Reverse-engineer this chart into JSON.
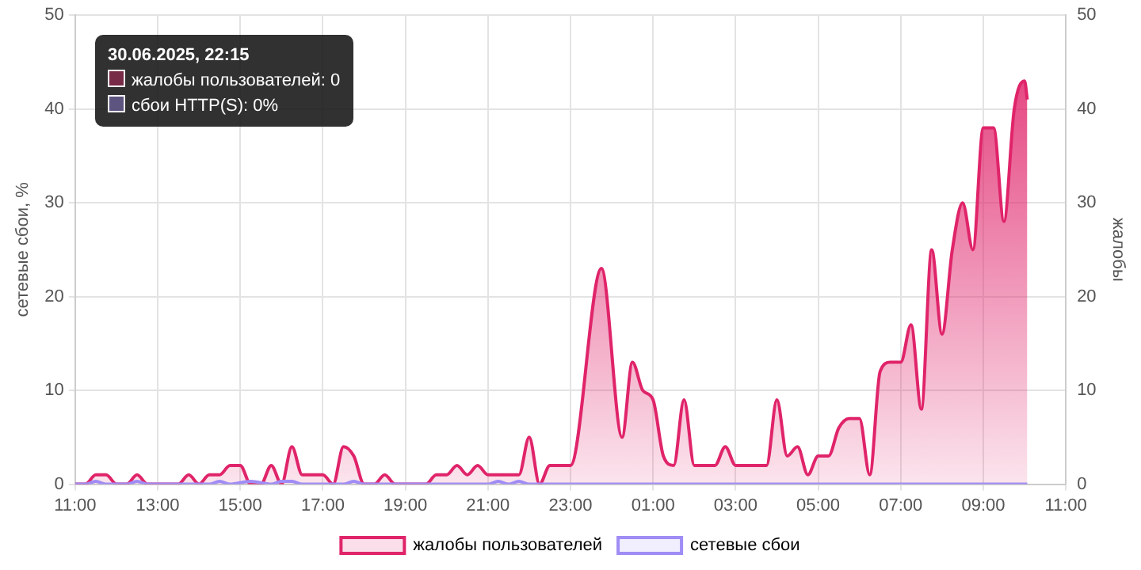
{
  "chart_data": {
    "type": "area",
    "ylabel": "сетевые сбои, %",
    "y2label": "жалобы",
    "xlim": [
      "2025-06-30T11:00",
      "2025-07-01T11:00"
    ],
    "xticks": [
      {
        "value": "2025-06-30T11:00",
        "label": "11:00"
      },
      {
        "value": "2025-06-30T13:00",
        "label": "13:00"
      },
      {
        "value": "2025-06-30T15:00",
        "label": "15:00"
      },
      {
        "value": "2025-06-30T17:00",
        "label": "17:00"
      },
      {
        "value": "2025-06-30T19:00",
        "label": "19:00"
      },
      {
        "value": "2025-06-30T21:00",
        "label": "21:00"
      },
      {
        "value": "2025-06-30T23:00",
        "label": "23:00"
      },
      {
        "value": "2025-07-01T01:00",
        "label": "01:00"
      },
      {
        "value": "2025-07-01T03:00",
        "label": "03:00"
      },
      {
        "value": "2025-07-01T05:00",
        "label": "05:00"
      },
      {
        "value": "2025-07-01T07:00",
        "label": "07:00"
      },
      {
        "value": "2025-07-01T09:00",
        "label": "09:00"
      },
      {
        "value": "2025-07-01T11:00",
        "label": "11:00"
      }
    ],
    "ylim": [
      0,
      50
    ],
    "yticks": [
      0,
      10,
      20,
      30,
      40,
      50
    ],
    "y2lim": [
      0,
      50
    ],
    "y2ticks": [
      0,
      10,
      20,
      30,
      40,
      50
    ],
    "grid": true,
    "legend": "bottom",
    "marker": "none",
    "series": [
      {
        "name": "жалобы пользователей",
        "color": "#e0246a",
        "x": [
          "2025-06-30T11:00",
          "2025-06-30T11:15",
          "2025-06-30T11:30",
          "2025-06-30T11:45",
          "2025-06-30T12:00",
          "2025-06-30T12:15",
          "2025-06-30T12:30",
          "2025-06-30T12:45",
          "2025-06-30T13:30",
          "2025-06-30T13:45",
          "2025-06-30T14:00",
          "2025-06-30T14:15",
          "2025-06-30T14:30",
          "2025-06-30T14:45",
          "2025-06-30T15:00",
          "2025-06-30T15:15",
          "2025-06-30T15:30",
          "2025-06-30T15:45",
          "2025-06-30T16:00",
          "2025-06-30T16:15",
          "2025-06-30T16:30",
          "2025-06-30T17:00",
          "2025-06-30T17:15",
          "2025-06-30T17:30",
          "2025-06-30T17:45",
          "2025-06-30T18:00",
          "2025-06-30T18:15",
          "2025-06-30T18:30",
          "2025-06-30T18:45",
          "2025-06-30T19:30",
          "2025-06-30T19:45",
          "2025-06-30T20:00",
          "2025-06-30T20:15",
          "2025-06-30T20:30",
          "2025-06-30T20:45",
          "2025-06-30T21:00",
          "2025-06-30T21:45",
          "2025-06-30T22:00",
          "2025-06-30T22:15",
          "2025-06-30T22:30",
          "2025-06-30T23:00",
          "2025-06-30T23:45",
          "2025-07-01T00:15",
          "2025-07-01T00:30",
          "2025-07-01T00:45",
          "2025-07-01T01:00",
          "2025-07-01T01:15",
          "2025-07-01T01:30",
          "2025-07-01T01:45",
          "2025-07-01T02:00",
          "2025-07-01T02:30",
          "2025-07-01T02:45",
          "2025-07-01T03:00",
          "2025-07-01T03:45",
          "2025-07-01T04:00",
          "2025-07-01T04:15",
          "2025-07-01T04:30",
          "2025-07-01T04:45",
          "2025-07-01T05:00",
          "2025-07-01T05:15",
          "2025-07-01T05:30",
          "2025-07-01T05:45",
          "2025-07-01T06:00",
          "2025-07-01T06:15",
          "2025-07-01T06:30",
          "2025-07-01T06:45",
          "2025-07-01T07:00",
          "2025-07-01T07:15",
          "2025-07-01T07:30",
          "2025-07-01T07:45",
          "2025-07-01T08:00",
          "2025-07-01T08:15",
          "2025-07-01T08:30",
          "2025-07-01T08:45",
          "2025-07-01T09:00",
          "2025-07-01T09:15",
          "2025-07-01T09:30",
          "2025-07-01T09:45",
          "2025-07-01T10:00",
          "2025-07-01T10:04"
        ],
        "values": [
          0,
          0,
          1,
          1,
          0,
          0,
          1,
          0,
          0,
          1,
          0,
          1,
          1,
          2,
          2,
          0,
          0,
          2,
          0,
          4,
          1,
          1,
          0,
          4,
          3,
          0,
          0,
          1,
          0,
          0,
          1,
          1,
          2,
          1,
          2,
          1,
          1,
          5,
          0,
          2,
          2,
          23,
          5,
          13,
          10,
          9,
          3,
          2,
          9,
          2,
          2,
          4,
          2,
          2,
          9,
          3,
          4,
          1,
          3,
          3,
          6,
          7,
          7,
          1,
          12,
          13,
          13,
          17,
          8,
          25,
          16,
          25,
          30,
          25,
          38,
          38,
          28,
          40,
          43,
          41
        ]
      },
      {
        "name": "сетевые сбои",
        "color": "#9f8cf5",
        "type": "line",
        "x": [
          "2025-06-30T11:00",
          "2025-06-30T11:15",
          "2025-06-30T11:30",
          "2025-06-30T11:45",
          "2025-06-30T12:15",
          "2025-06-30T12:30",
          "2025-06-30T12:45",
          "2025-06-30T14:15",
          "2025-06-30T14:30",
          "2025-06-30T14:45",
          "2025-06-30T15:15",
          "2025-06-30T15:45",
          "2025-06-30T16:00",
          "2025-06-30T16:15",
          "2025-06-30T16:30",
          "2025-06-30T17:30",
          "2025-06-30T17:45",
          "2025-06-30T18:00",
          "2025-06-30T21:00",
          "2025-06-30T21:15",
          "2025-06-30T21:30",
          "2025-06-30T21:45",
          "2025-06-30T22:00",
          "2025-07-01T10:04"
        ],
        "values": [
          0,
          0,
          0.3,
          0,
          0,
          0.3,
          0,
          0,
          0.3,
          0,
          0.3,
          0,
          0.3,
          0.3,
          0,
          0,
          0.3,
          0,
          0,
          0.3,
          0,
          0.3,
          0,
          0
        ]
      }
    ],
    "annotations": [
      "30.06.2025, 22:15",
      "жалобы пользователей: 0",
      "сбои HTTP(S): 0%"
    ]
  }
}
